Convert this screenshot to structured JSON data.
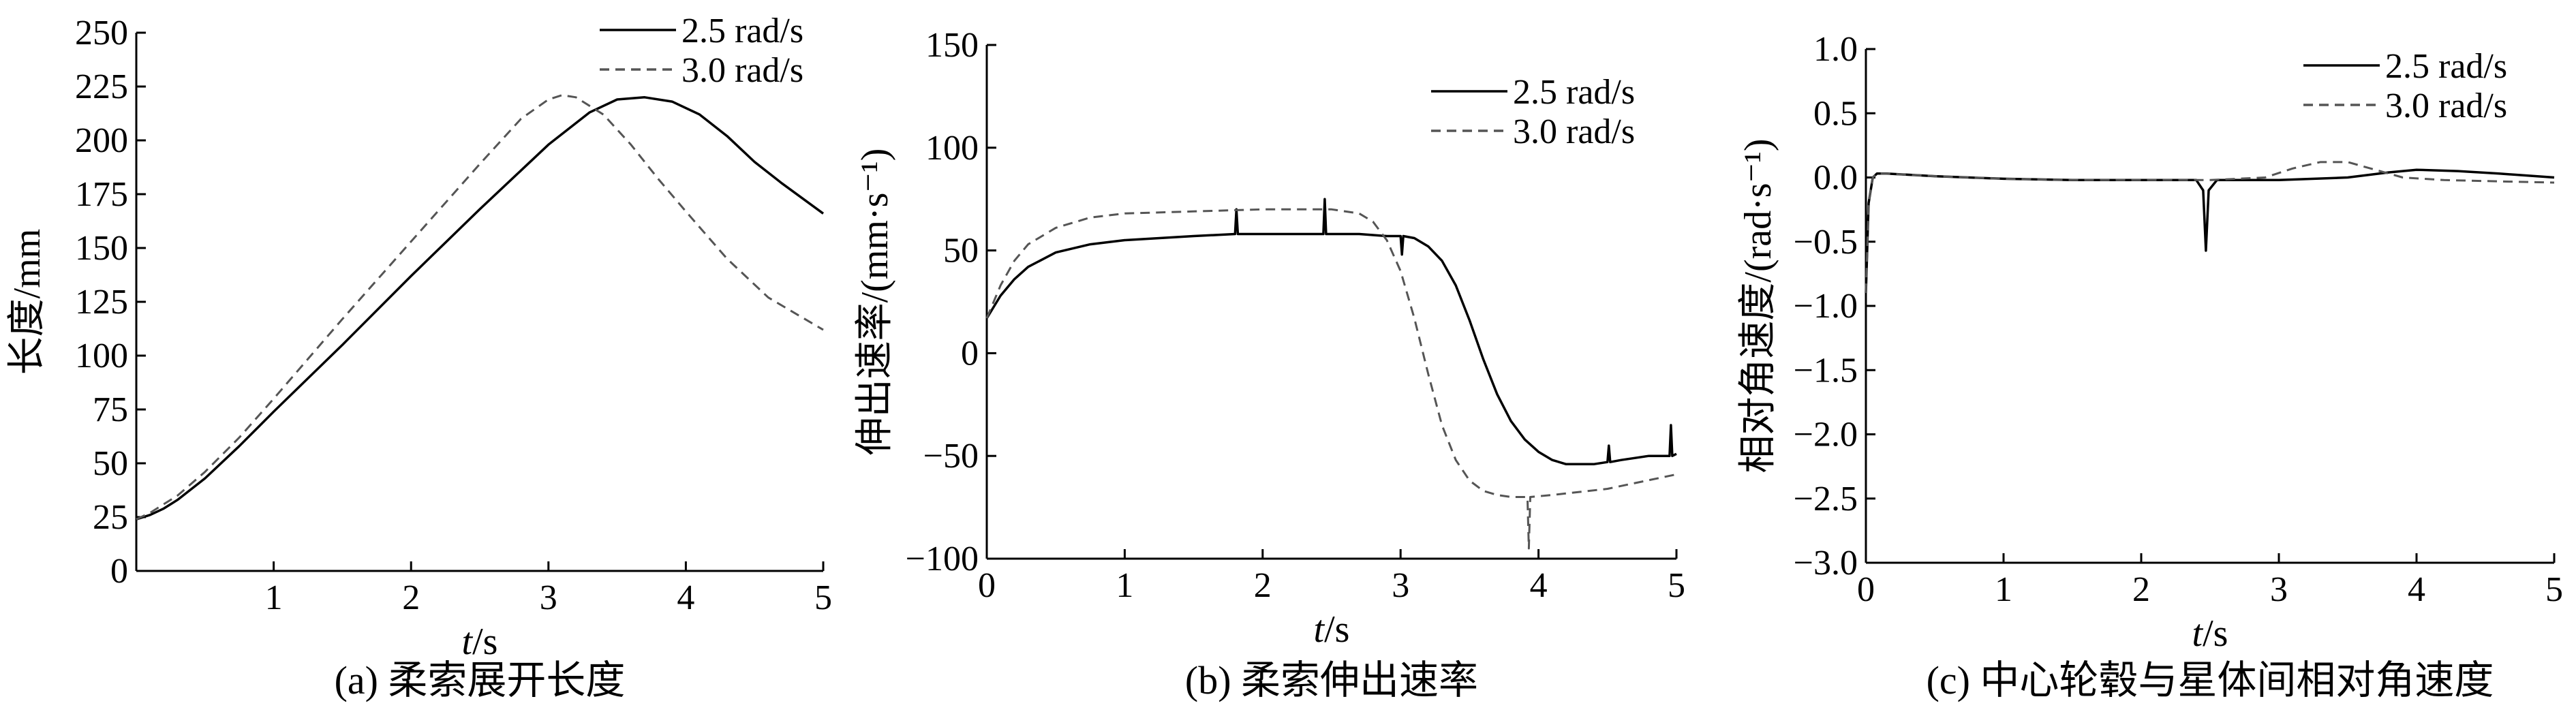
{
  "chart_data": [
    {
      "type": "line",
      "caption": "(a) 柔索展开长度",
      "xlabel_var": "t",
      "xlabel_unit": "/s",
      "ylabel": "长度/mm",
      "xlim": [
        0,
        5
      ],
      "ylim": [
        0,
        250
      ],
      "xticks": [
        1,
        2,
        3,
        4,
        5
      ],
      "xtick_labels": [
        "1",
        "2",
        "3",
        "4",
        "5"
      ],
      "yticks": [
        0,
        25,
        50,
        75,
        100,
        125,
        150,
        175,
        200,
        225,
        250
      ],
      "ytick_labels": [
        "0",
        "25",
        "50",
        "75",
        "100",
        "125",
        "150",
        "175",
        "200",
        "225",
        "250"
      ],
      "legend_placement": "top-right",
      "series": [
        {
          "name": "2.5 rad/s",
          "style": "solid",
          "x": [
            0,
            0.1,
            0.2,
            0.3,
            0.5,
            0.75,
            1.0,
            1.5,
            2.0,
            2.5,
            3.0,
            3.3,
            3.5,
            3.7,
            3.9,
            4.1,
            4.3,
            4.5,
            4.7,
            5.0
          ],
          "y": [
            24,
            26,
            29,
            33,
            43,
            58,
            74,
            105,
            137,
            168,
            198,
            213,
            219,
            220,
            218,
            212,
            202,
            190,
            180,
            166
          ]
        },
        {
          "name": "3.0 rad/s",
          "style": "dashed",
          "x": [
            0,
            0.1,
            0.2,
            0.3,
            0.5,
            0.75,
            1.0,
            1.5,
            2.0,
            2.5,
            2.8,
            3.0,
            3.1,
            3.2,
            3.4,
            3.6,
            3.8,
            4.0,
            4.3,
            4.6,
            5.0
          ],
          "y": [
            24,
            27,
            31,
            35,
            46,
            62,
            80,
            117,
            153,
            189,
            210,
            219,
            221,
            220,
            212,
            198,
            182,
            167,
            145,
            127,
            112
          ]
        }
      ]
    },
    {
      "type": "line",
      "caption": "(b) 柔索伸出速率",
      "xlabel_var": "t",
      "xlabel_unit": "/s",
      "ylabel": "伸出速率/(mm·s⁻¹)",
      "xlim": [
        0,
        5
      ],
      "ylim": [
        -100,
        150
      ],
      "xticks": [
        0,
        1,
        2,
        3,
        4,
        5
      ],
      "xtick_labels": [
        "0",
        "1",
        "2",
        "3",
        "4",
        "5"
      ],
      "yticks": [
        -100,
        -50,
        0,
        50,
        100,
        150
      ],
      "ytick_labels": [
        "−100",
        "−50",
        "0",
        "50",
        "100",
        "150"
      ],
      "legend_placement": "top-right",
      "series": [
        {
          "name": "2.5 rad/s",
          "style": "solid",
          "x": [
            0,
            0.1,
            0.2,
            0.3,
            0.5,
            0.75,
            1.0,
            1.5,
            1.8,
            1.81,
            1.82,
            2.0,
            2.44,
            2.45,
            2.46,
            2.7,
            2.9,
            3.0,
            3.01,
            3.02,
            3.1,
            3.2,
            3.3,
            3.4,
            3.5,
            3.6,
            3.7,
            3.8,
            3.9,
            4.0,
            4.1,
            4.2,
            4.3,
            4.4,
            4.5,
            4.51,
            4.52,
            4.6,
            4.7,
            4.8,
            4.9,
            4.95,
            4.96,
            4.97,
            5.0
          ],
          "y": [
            17,
            28,
            36,
            42,
            49,
            53,
            55,
            57,
            58,
            70,
            58,
            58,
            58,
            75,
            58,
            58,
            57,
            57,
            48,
            57,
            56,
            52,
            45,
            33,
            16,
            -3,
            -20,
            -33,
            -42,
            -48,
            -52,
            -54,
            -54,
            -54,
            -53,
            -45,
            -53,
            -52,
            -51,
            -50,
            -50,
            -50,
            -35,
            -50,
            -49
          ]
        },
        {
          "name": "3.0 rad/s",
          "style": "dashed",
          "x": [
            0,
            0.1,
            0.2,
            0.3,
            0.5,
            0.75,
            1.0,
            1.5,
            2.0,
            2.5,
            2.7,
            2.8,
            2.9,
            3.0,
            3.1,
            3.2,
            3.3,
            3.4,
            3.5,
            3.6,
            3.7,
            3.8,
            3.9,
            3.92,
            3.93,
            3.94,
            4.1,
            4.5,
            5.0
          ],
          "y": [
            17,
            33,
            45,
            53,
            61,
            66,
            68,
            69,
            70,
            70,
            68,
            64,
            55,
            40,
            17,
            -10,
            -35,
            -52,
            -62,
            -67,
            -69,
            -70,
            -70,
            -70,
            -95,
            -70,
            -69,
            -66,
            -59
          ]
        }
      ]
    },
    {
      "type": "line",
      "caption": "(c) 中心轮毂与星体间相对角速度",
      "xlabel_var": "t",
      "xlabel_unit": "/s",
      "ylabel": "相对角速度/(rad·s⁻¹)",
      "xlim": [
        0,
        5
      ],
      "ylim": [
        -3.0,
        1.0
      ],
      "xticks": [
        0,
        1,
        2,
        3,
        4,
        5
      ],
      "xtick_labels": [
        "0",
        "1",
        "2",
        "3",
        "4",
        "5"
      ],
      "yticks": [
        -3.0,
        -2.5,
        -2.0,
        -1.5,
        -1.0,
        -0.5,
        0.0,
        0.5,
        1.0
      ],
      "ytick_labels": [
        "−3.0",
        "−2.5",
        "−2.0",
        "−1.5",
        "−1.0",
        "−0.5",
        "0.0",
        "0.5",
        "1.0"
      ],
      "legend_placement": "top-right",
      "series": [
        {
          "name": "2.5 rad/s",
          "style": "solid",
          "x": [
            0,
            0.02,
            0.05,
            0.08,
            0.15,
            0.5,
            1.0,
            1.5,
            2.0,
            2.4,
            2.45,
            2.47,
            2.49,
            2.55,
            3.0,
            3.5,
            3.8,
            4.0,
            4.3,
            4.6,
            5.0
          ],
          "y": [
            -0.9,
            -0.2,
            0.0,
            0.03,
            0.03,
            0.01,
            -0.01,
            -0.02,
            -0.02,
            -0.02,
            -0.1,
            -0.57,
            -0.1,
            -0.02,
            -0.02,
            0.0,
            0.04,
            0.06,
            0.05,
            0.03,
            0.0
          ]
        },
        {
          "name": "3.0 rad/s",
          "style": "dashed",
          "x": [
            0,
            0.02,
            0.05,
            0.08,
            0.15,
            0.5,
            1.0,
            1.5,
            2.0,
            2.5,
            2.9,
            3.1,
            3.3,
            3.5,
            3.7,
            3.9,
            4.2,
            4.6,
            5.0
          ],
          "y": [
            -0.9,
            -0.2,
            0.0,
            0.03,
            0.03,
            0.01,
            -0.01,
            -0.02,
            -0.02,
            -0.02,
            0.0,
            0.07,
            0.12,
            0.12,
            0.06,
            0.0,
            -0.02,
            -0.03,
            -0.04
          ]
        }
      ]
    }
  ]
}
